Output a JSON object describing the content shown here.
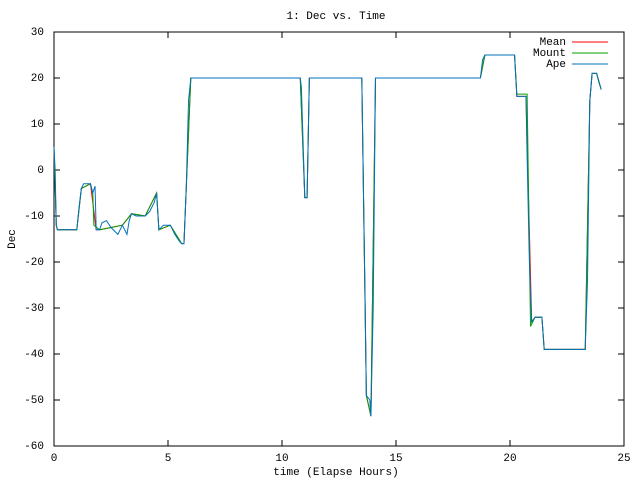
{
  "chart_data": {
    "type": "line",
    "title": "1: Dec vs. Time",
    "xlabel": "time (Elapse Hours)",
    "ylabel": "Dec",
    "xlim": [
      0,
      25
    ],
    "ylim": [
      -60,
      30
    ],
    "xticks": [
      0,
      5,
      10,
      15,
      20,
      25
    ],
    "yticks": [
      -60,
      -50,
      -40,
      -30,
      -20,
      -10,
      0,
      10,
      20,
      30
    ],
    "legend": "top-right",
    "series": [
      {
        "name": "Mean",
        "color": "#ff0000",
        "x": [
          0,
          0.1,
          0.15,
          1.0,
          1.2,
          1.6,
          1.85,
          2.0,
          2.5,
          3.0,
          3.4,
          4.0,
          4.5,
          4.6,
          5.1,
          5.6,
          5.7,
          6.0,
          10.8,
          11.0,
          11.1,
          11.2,
          13.5,
          13.7,
          13.9,
          14.1,
          18.7,
          18.9,
          20.2,
          20.3,
          20.7,
          20.95,
          21.1,
          21.4,
          21.5,
          23.3,
          23.5,
          23.6,
          23.8,
          24.0
        ],
        "values": [
          5,
          -12,
          -13,
          -13,
          -4,
          -3,
          -13,
          -13,
          -12.5,
          -12,
          -9.5,
          -10,
          -5,
          -13,
          -12,
          -16,
          -16,
          20,
          20,
          -6,
          -6,
          20,
          20,
          -49,
          -53.5,
          20,
          20,
          25,
          25,
          16,
          16,
          -33,
          -32,
          -32,
          -39,
          -39,
          15,
          21,
          21,
          17.5
        ]
      },
      {
        "name": "Mount",
        "color": "#00a000",
        "x": [
          0,
          0.1,
          0.15,
          1.0,
          1.2,
          1.6,
          1.7,
          1.75,
          2.0,
          2.5,
          3.0,
          3.4,
          4.0,
          4.5,
          4.6,
          5.1,
          5.6,
          5.7,
          6.0,
          10.8,
          11.0,
          11.1,
          11.2,
          13.5,
          13.7,
          13.9,
          14.1,
          18.7,
          18.9,
          20.2,
          20.3,
          20.75,
          20.9,
          21.1,
          21.4,
          21.5,
          23.3,
          23.5,
          23.6,
          23.8,
          24.0
        ],
        "values": [
          5,
          -12,
          -13,
          -13,
          -4,
          -3,
          -5,
          -12,
          -13,
          -12.5,
          -12,
          -9.5,
          -10,
          -5,
          -13,
          -12,
          -16,
          -16,
          20,
          20,
          -6,
          -6,
          20,
          20,
          -49,
          -53.5,
          20,
          20,
          25,
          25,
          16.5,
          16.5,
          -34,
          -32,
          -32,
          -39,
          -39,
          15,
          21,
          21,
          17.5
        ]
      },
      {
        "name": "Ape",
        "color": "#0070c0",
        "x": [
          0.0,
          0.05,
          0.1,
          0.15,
          1.0,
          1.1,
          1.2,
          1.3,
          1.6,
          1.7,
          1.8,
          1.85,
          2.0,
          2.1,
          2.3,
          2.5,
          2.8,
          3.0,
          3.2,
          3.3,
          3.4,
          3.6,
          4.0,
          4.2,
          4.4,
          4.5,
          4.6,
          4.8,
          5.1,
          5.3,
          5.5,
          5.6,
          5.7,
          5.8,
          5.9,
          6.0,
          10.8,
          10.85,
          11.0,
          11.1,
          11.2,
          13.5,
          13.65,
          13.7,
          13.85,
          13.9,
          14.0,
          14.1,
          18.7,
          18.8,
          18.9,
          20.2,
          20.3,
          20.7,
          20.75,
          20.85,
          20.95,
          21.1,
          21.4,
          21.5,
          23.3,
          23.4,
          23.5,
          23.6,
          23.8,
          23.9,
          24.0
        ],
        "values": [
          5,
          0,
          -12,
          -13,
          -13,
          -8,
          -4,
          -3,
          -3,
          -5,
          -3.5,
          -13,
          -13,
          -11.5,
          -11,
          -12.5,
          -14,
          -12,
          -14,
          -11,
          -9.5,
          -10,
          -10,
          -9,
          -7,
          -5,
          -13,
          -12,
          -12,
          -14,
          -15.5,
          -16,
          -16,
          -4,
          15,
          20,
          20,
          18,
          -6,
          -6,
          20,
          20,
          -30,
          -49,
          -50,
          -53.5,
          -30,
          20,
          20,
          24,
          25,
          25,
          16,
          16,
          3,
          -20,
          -33,
          -32,
          -32,
          -39,
          -39,
          -24,
          15,
          21,
          21,
          19,
          17.5
        ]
      }
    ]
  }
}
